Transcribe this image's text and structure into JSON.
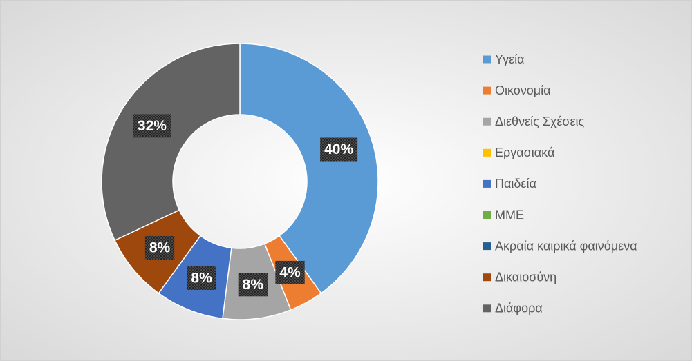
{
  "chart_data": {
    "type": "donut",
    "categories": [
      "Υγεία",
      "Οικονομία",
      "Διεθνείς Σχέσεις",
      "Εργασιακά",
      "Παιδεία",
      "ΜΜΕ",
      "Ακραία καιρικά φαινόμενα",
      "Δικαιοσύνη",
      "Διάφορα"
    ],
    "values": [
      40,
      4,
      8,
      0,
      8,
      0,
      0,
      8,
      32
    ],
    "value_labels": [
      "40%",
      "4%",
      "8%",
      null,
      "8%",
      null,
      null,
      "8%",
      "32%"
    ],
    "colors": [
      "#5b9bd5",
      "#ed7d31",
      "#a5a5a5",
      "#ffc000",
      "#4472c4",
      "#70ad47",
      "#255e91",
      "#9e480e",
      "#636363"
    ],
    "legend": "right"
  }
}
